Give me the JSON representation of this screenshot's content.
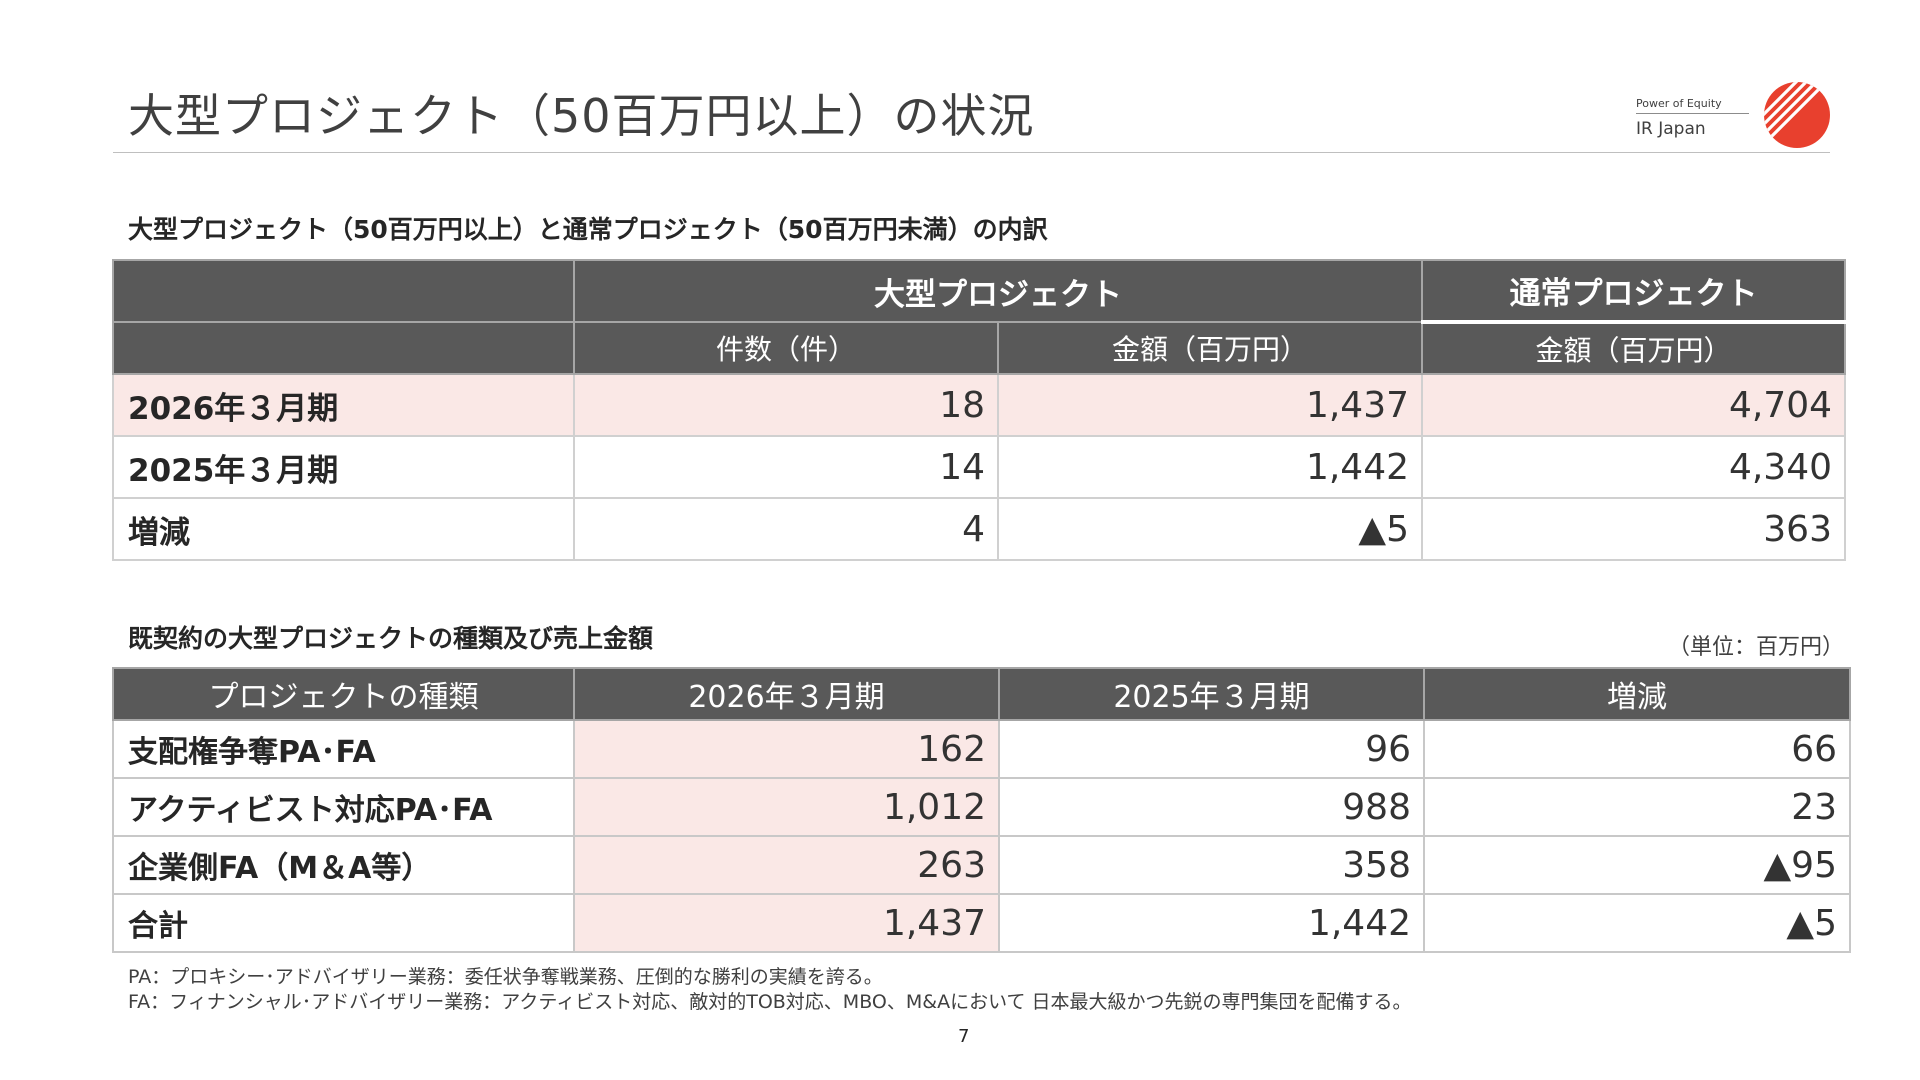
{
  "page": {
    "title": "大型プロジェクト（50百万円以上）の状況",
    "page_number": "7"
  },
  "logo": {
    "tagline": "Power of Equity",
    "name": "IR Japan",
    "mark_color": "#e8402e"
  },
  "section1": {
    "title": "大型プロジェクト（50百万円以上）と通常プロジェクト（50百万円未満）の内訳",
    "group_large": "大型プロジェクト",
    "group_normal": "通常プロジェクト",
    "col_count": "件数（件）",
    "col_amount_large": "金額（百万円）",
    "col_amount_normal": "金額（百万円）",
    "rows": [
      {
        "label": "2026年３月期",
        "count": "18",
        "amount_large": "1,437",
        "amount_normal": "4,704"
      },
      {
        "label": "2025年３月期",
        "count": "14",
        "amount_large": "1,442",
        "amount_normal": "4,340"
      },
      {
        "label": "増減",
        "count": "4",
        "amount_large": "▲5",
        "amount_normal": "363"
      }
    ]
  },
  "section2": {
    "title": "既契約の大型プロジェクトの種類及び売上金額",
    "unit": "（単位：百万円）",
    "headers": [
      "プロジェクトの種類",
      "2026年３月期",
      "2025年３月期",
      "増減"
    ],
    "rows": [
      {
        "label": "支配権争奪PA･FA",
        "fy2026": "162",
        "fy2025": "96",
        "change": "66"
      },
      {
        "label": "アクティビスト対応PA･FA",
        "fy2026": "1,012",
        "fy2025": "988",
        "change": "23"
      },
      {
        "label": "企業側FA（M＆A等）",
        "fy2026": "263",
        "fy2025": "358",
        "change": "▲95"
      },
      {
        "label": "合計",
        "fy2026": "1,437",
        "fy2025": "1,442",
        "change": "▲5"
      }
    ]
  },
  "footnotes": [
    "PA：プロキシー･アドバイザリー業務：委任状争奪戦業務、圧倒的な勝利の実績を誇る。",
    "FA：フィナンシャル･アドバイザリー業務：アクティビスト対応、敵対的TOB対応、MBO、M&Aにおいて 日本最大級かつ先鋭の専門集団を配備する。"
  ],
  "colors": {
    "header_bg": "#595959",
    "highlight_bg": "#fae8e6",
    "brand_red": "#e8402e"
  }
}
